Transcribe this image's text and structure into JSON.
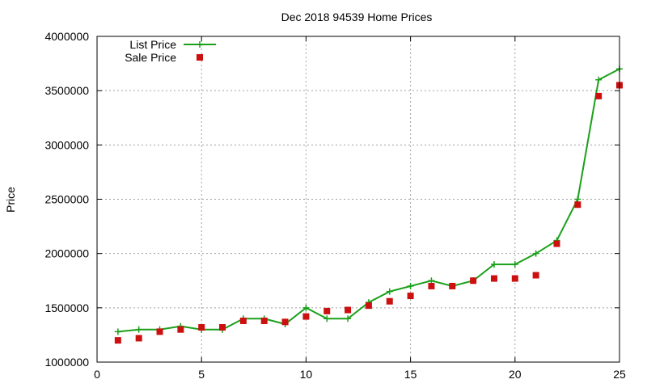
{
  "chart_data": {
    "type": "line",
    "title": "Dec 2018 94539 Home Prices",
    "xlabel": "",
    "ylabel": "Price",
    "xlim": [
      0,
      25
    ],
    "ylim": [
      1000000,
      4000000
    ],
    "x_ticks": [
      "0",
      "5",
      "10",
      "15",
      "20",
      "25"
    ],
    "y_ticks": [
      "1000000",
      "1500000",
      "2000000",
      "2500000",
      "3000000",
      "3500000",
      "4000000"
    ],
    "grid": true,
    "legend_position": "top-left",
    "series": [
      {
        "name": "List Price",
        "style": "line-with-plus-markers",
        "color": "#1aa01a",
        "x": [
          1,
          2,
          3,
          4,
          5,
          6,
          7,
          8,
          9,
          10,
          11,
          12,
          13,
          14,
          15,
          16,
          17,
          18,
          19,
          20,
          21,
          22,
          23,
          24,
          25
        ],
        "values": [
          1280000,
          1300000,
          1300000,
          1330000,
          1300000,
          1300000,
          1400000,
          1400000,
          1350000,
          1500000,
          1400000,
          1400000,
          1550000,
          1650000,
          1700000,
          1750000,
          1700000,
          1750000,
          1900000,
          1900000,
          2000000,
          2120000,
          2500000,
          3600000,
          3700000
        ]
      },
      {
        "name": "Sale Price",
        "style": "square-markers",
        "color": "#cc1010",
        "x": [
          1,
          2,
          3,
          4,
          5,
          6,
          7,
          8,
          9,
          10,
          11,
          12,
          13,
          14,
          15,
          16,
          17,
          18,
          19,
          20,
          21,
          22,
          23,
          24,
          25
        ],
        "values": [
          1200000,
          1220000,
          1280000,
          1300000,
          1320000,
          1320000,
          1380000,
          1380000,
          1370000,
          1420000,
          1470000,
          1480000,
          1520000,
          1560000,
          1610000,
          1700000,
          1700000,
          1750000,
          1770000,
          1770000,
          1800000,
          2090000,
          2450000,
          3450000,
          3550000
        ]
      }
    ]
  }
}
